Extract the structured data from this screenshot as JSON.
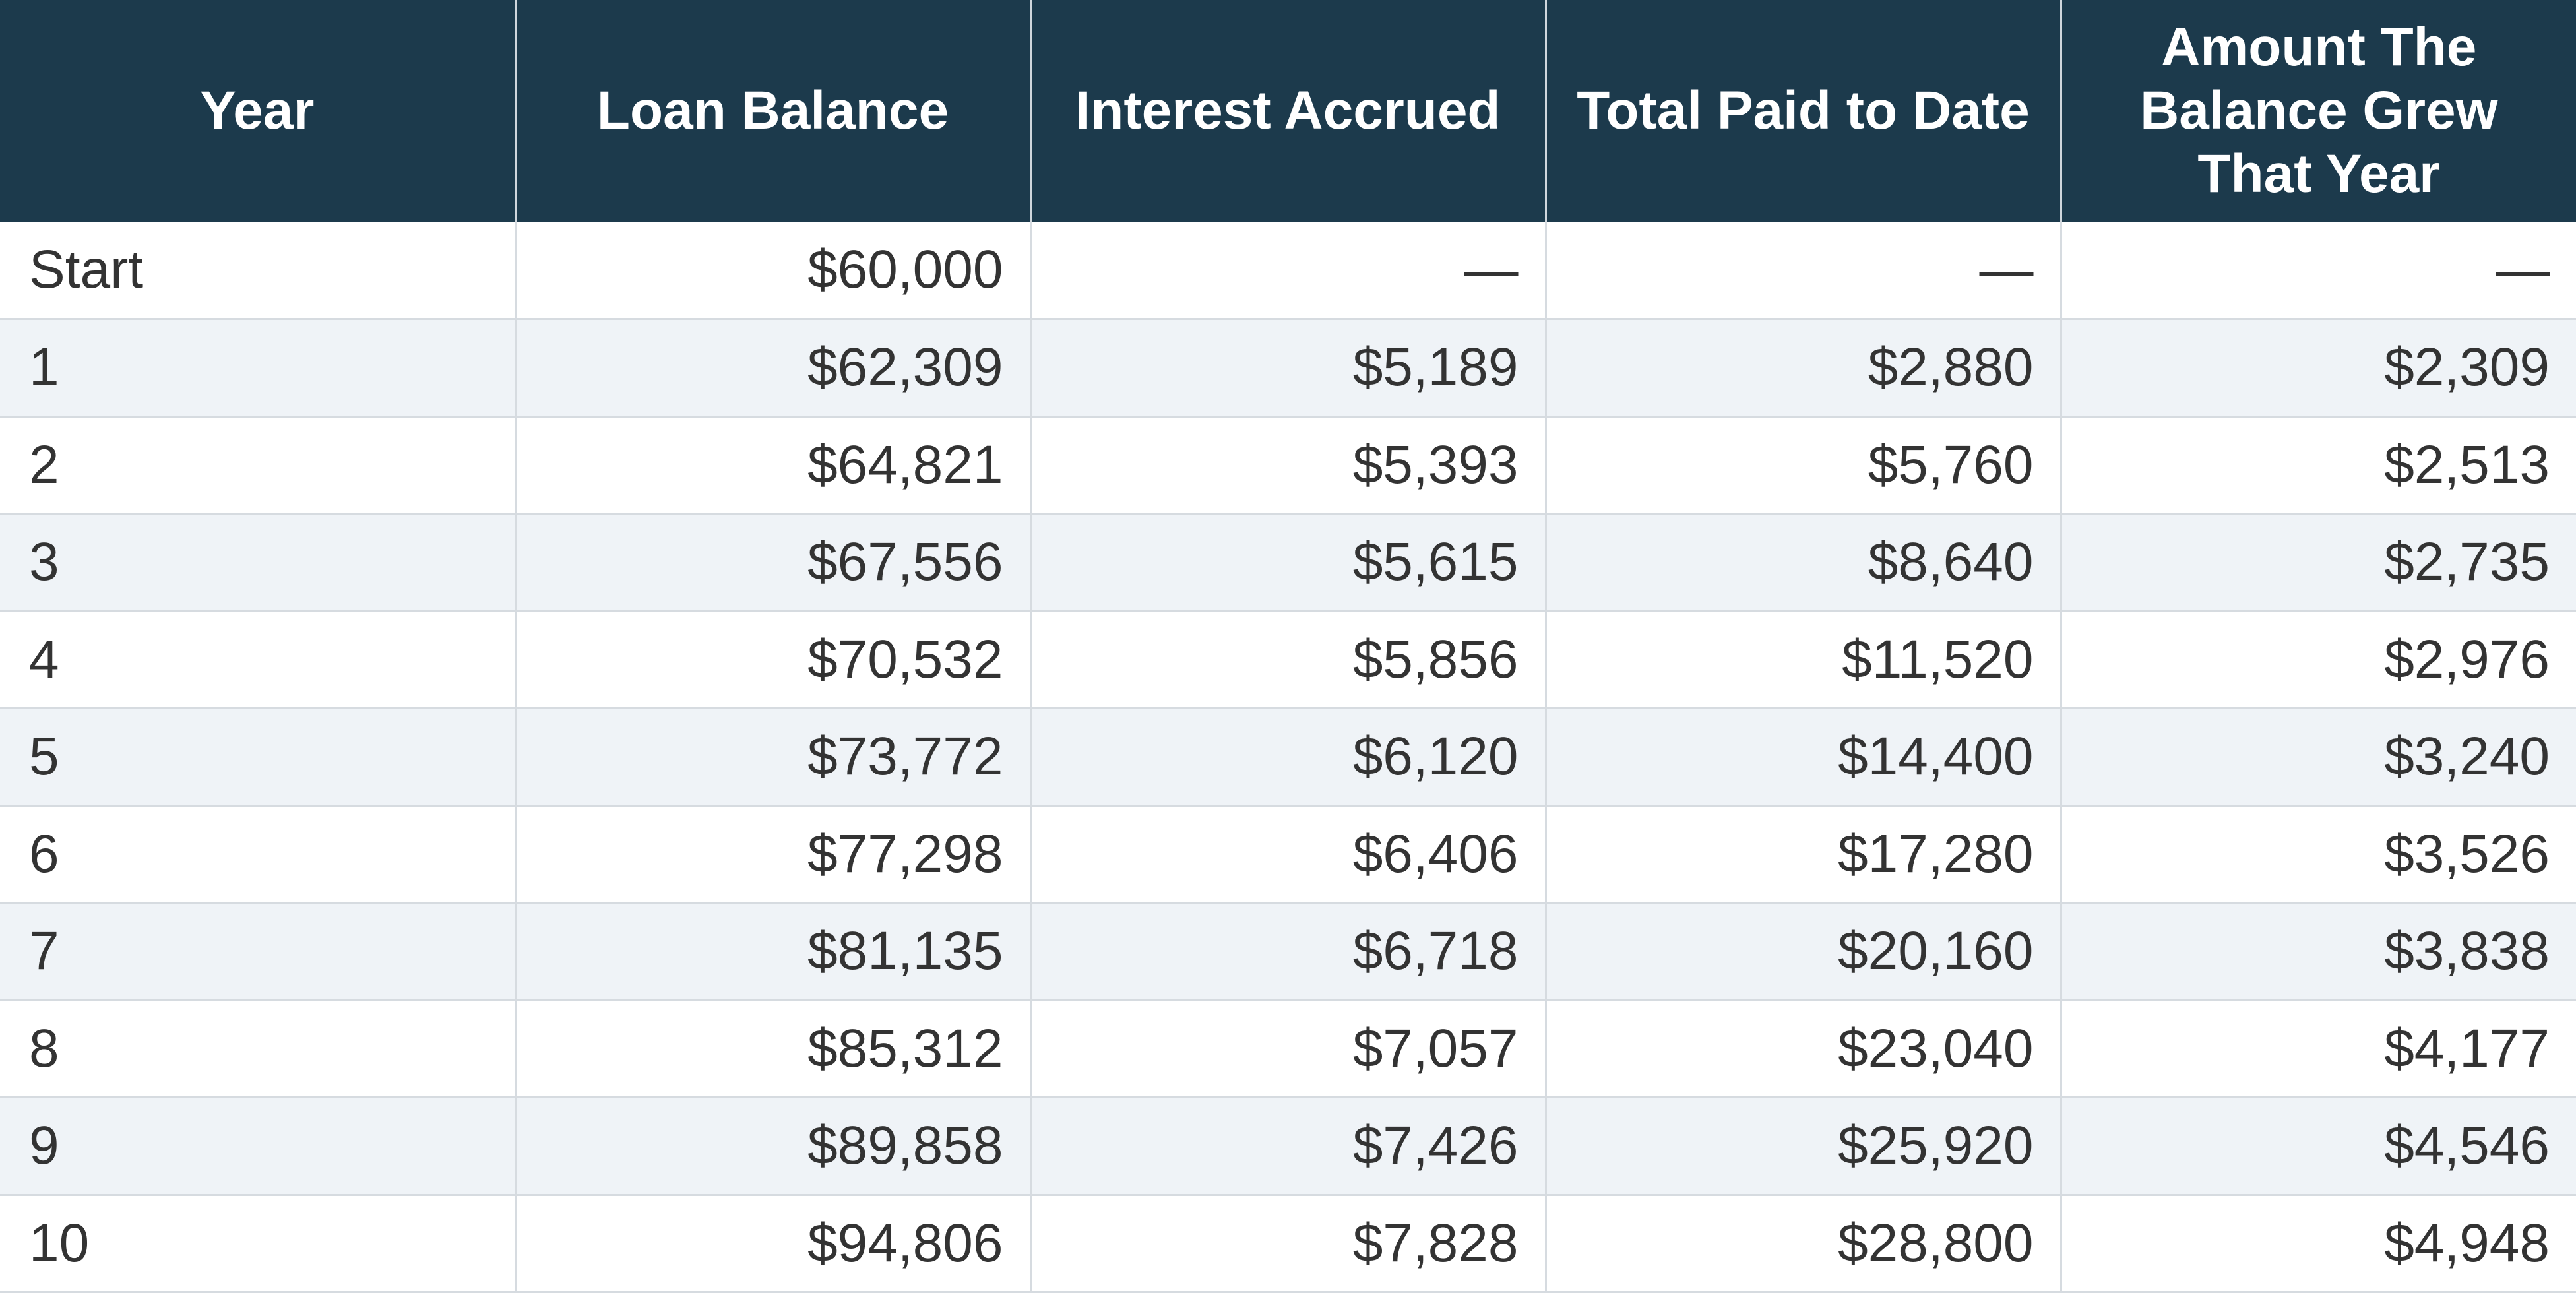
{
  "colors": {
    "header_bg": "#1c3a4c",
    "header_text": "#ffffff",
    "cell_text": "#333333",
    "stripe_bg": "#eff3f7",
    "grid_line": "#d6dbe0"
  },
  "chart_data": {
    "type": "table",
    "columns": [
      "Year",
      "Loan Balance",
      "Interest Accrued",
      "Total Paid to Date",
      "Amount The Balance Grew That Year"
    ],
    "rows": [
      [
        "Start",
        "$60,000",
        "—",
        "—",
        "—"
      ],
      [
        "1",
        "$62,309",
        "$5,189",
        "$2,880",
        "$2,309"
      ],
      [
        "2",
        "$64,821",
        "$5,393",
        "$5,760",
        "$2,513"
      ],
      [
        "3",
        "$67,556",
        "$5,615",
        "$8,640",
        "$2,735"
      ],
      [
        "4",
        "$70,532",
        "$5,856",
        "$11,520",
        "$2,976"
      ],
      [
        "5",
        "$73,772",
        "$6,120",
        "$14,400",
        "$3,240"
      ],
      [
        "6",
        "$77,298",
        "$6,406",
        "$17,280",
        "$3,526"
      ],
      [
        "7",
        "$81,135",
        "$6,718",
        "$20,160",
        "$3,838"
      ],
      [
        "8",
        "$85,312",
        "$7,057",
        "$23,040",
        "$4,177"
      ],
      [
        "9",
        "$89,858",
        "$7,426",
        "$25,920",
        "$4,546"
      ],
      [
        "10",
        "$94,806",
        "$7,828",
        "$28,800",
        "$4,948"
      ]
    ]
  }
}
